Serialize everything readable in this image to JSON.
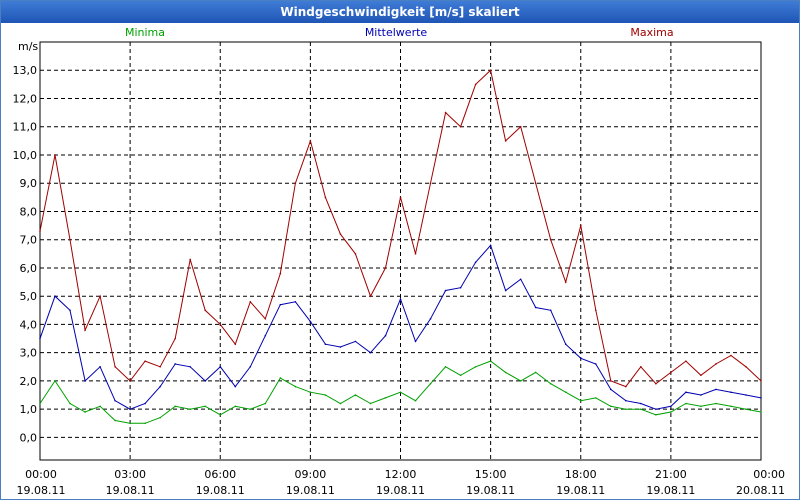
{
  "window": {
    "title": "Windgeschwindigkeit [m/s] skaliert"
  },
  "chart_data": {
    "type": "line",
    "title": "Windgeschwindigkeit [m/s] skaliert",
    "ylabel": "m/s",
    "xlabel": "",
    "ylim": [
      -0.8,
      14.0
    ],
    "xlim": [
      0,
      24
    ],
    "grid": true,
    "y_ticks": [
      "0,0",
      "1,0",
      "2,0",
      "3,0",
      "4,0",
      "5,0",
      "6,0",
      "7,0",
      "8,0",
      "9,0",
      "10,0",
      "11,0",
      "12,0",
      "13,0"
    ],
    "x_ticks": [
      {
        "time": "00:00",
        "date": "19.08.11"
      },
      {
        "time": "03:00",
        "date": "19.08.11"
      },
      {
        "time": "06:00",
        "date": "19.08.11"
      },
      {
        "time": "09:00",
        "date": "19.08.11"
      },
      {
        "time": "12:00",
        "date": "19.08.11"
      },
      {
        "time": "15:00",
        "date": "19.08.11"
      },
      {
        "time": "18:00",
        "date": "19.08.11"
      },
      {
        "time": "21:00",
        "date": "19.08.11"
      },
      {
        "time": "00:00",
        "date": "20.08.11"
      }
    ],
    "x": [
      0,
      0.5,
      1,
      1.5,
      2,
      2.5,
      3,
      3.5,
      4,
      4.5,
      5,
      5.5,
      6,
      6.5,
      7,
      7.5,
      8,
      8.5,
      9,
      9.5,
      10,
      10.5,
      11,
      11.5,
      12,
      12.5,
      13,
      13.5,
      14,
      14.5,
      15,
      15.5,
      16,
      16.5,
      17,
      17.5,
      18,
      18.5,
      19,
      19.5,
      20,
      20.5,
      21,
      21.5,
      22,
      22.5,
      23,
      23.5,
      24
    ],
    "series": [
      {
        "name": "Minima",
        "color": "#00a000",
        "values": [
          1.2,
          2.0,
          1.2,
          0.9,
          1.1,
          0.6,
          0.5,
          0.5,
          0.7,
          1.1,
          1.0,
          1.1,
          0.8,
          1.1,
          1.0,
          1.2,
          2.1,
          1.8,
          1.6,
          1.5,
          1.2,
          1.5,
          1.2,
          1.4,
          1.6,
          1.3,
          1.9,
          2.5,
          2.2,
          2.5,
          2.7,
          2.3,
          2.0,
          2.3,
          1.9,
          1.6,
          1.3,
          1.4,
          1.1,
          1.0,
          1.0,
          0.8,
          0.9,
          1.2,
          1.1,
          1.2,
          1.1,
          1.0,
          0.9
        ]
      },
      {
        "name": "Mittelwerte",
        "color": "#0000b0",
        "values": [
          3.5,
          5.0,
          4.5,
          2.0,
          2.5,
          1.3,
          1.0,
          1.2,
          1.8,
          2.6,
          2.5,
          2.0,
          2.5,
          1.8,
          2.5,
          3.6,
          4.7,
          4.8,
          4.1,
          3.3,
          3.2,
          3.4,
          3.0,
          3.6,
          4.9,
          3.4,
          4.2,
          5.2,
          5.3,
          6.2,
          6.8,
          5.2,
          5.6,
          4.6,
          4.5,
          3.3,
          2.8,
          2.6,
          1.7,
          1.3,
          1.2,
          1.0,
          1.1,
          1.6,
          1.5,
          1.7,
          1.6,
          1.5,
          1.4
        ]
      },
      {
        "name": "Maxima",
        "color": "#a00000",
        "values": [
          7.3,
          10.0,
          7.0,
          3.8,
          5.0,
          2.5,
          2.0,
          2.7,
          2.5,
          3.5,
          6.3,
          4.5,
          4.0,
          3.3,
          4.8,
          4.2,
          5.8,
          9.0,
          10.5,
          8.5,
          7.2,
          6.5,
          5.0,
          6.0,
          8.5,
          6.5,
          9.0,
          11.5,
          11.0,
          12.5,
          13.0,
          10.5,
          11.0,
          9.0,
          7.0,
          5.5,
          7.5,
          4.5,
          2.0,
          1.8,
          2.5,
          1.9,
          2.3,
          2.7,
          2.2,
          2.6,
          2.9,
          2.5,
          2.0
        ]
      }
    ]
  }
}
